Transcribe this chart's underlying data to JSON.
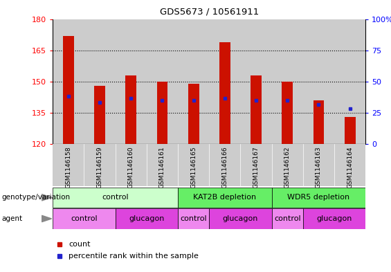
{
  "title": "GDS5673 / 10561911",
  "samples": [
    "GSM1146158",
    "GSM1146159",
    "GSM1146160",
    "GSM1146161",
    "GSM1146165",
    "GSM1146166",
    "GSM1146167",
    "GSM1146162",
    "GSM1146163",
    "GSM1146164"
  ],
  "bar_values": [
    172,
    148,
    153,
    150,
    149,
    169,
    153,
    150,
    141,
    133
  ],
  "bar_bottom": 120,
  "percentile_values": [
    143,
    140,
    142,
    141,
    141,
    142,
    141,
    141,
    139,
    137
  ],
  "ylim_left": [
    120,
    180
  ],
  "yticks_left": [
    120,
    135,
    150,
    165,
    180
  ],
  "ylim_right": [
    0,
    100
  ],
  "yticks_right": [
    0,
    25,
    50,
    75,
    100
  ],
  "bar_color": "#cc1100",
  "percentile_color": "#2222cc",
  "bar_width": 0.35,
  "genotype_groups": [
    {
      "label": "control",
      "start": 0,
      "end": 4,
      "color": "#ccffcc"
    },
    {
      "label": "KAT2B depletion",
      "start": 4,
      "end": 7,
      "color": "#66ee66"
    },
    {
      "label": "WDR5 depletion",
      "start": 7,
      "end": 10,
      "color": "#66ee66"
    }
  ],
  "agent_groups": [
    {
      "label": "control",
      "start": 0,
      "end": 2,
      "color": "#ee88ee"
    },
    {
      "label": "glucagon",
      "start": 2,
      "end": 4,
      "color": "#dd44dd"
    },
    {
      "label": "control",
      "start": 4,
      "end": 5,
      "color": "#ee88ee"
    },
    {
      "label": "glucagon",
      "start": 5,
      "end": 7,
      "color": "#dd44dd"
    },
    {
      "label": "control",
      "start": 7,
      "end": 8,
      "color": "#ee88ee"
    },
    {
      "label": "glucagon",
      "start": 8,
      "end": 10,
      "color": "#dd44dd"
    }
  ],
  "legend_count_color": "#cc1100",
  "legend_percentile_color": "#2222cc",
  "background_color": "#ffffff",
  "plot_bg": "#ffffff",
  "row_label_genotype": "genotype/variation",
  "row_label_agent": "agent",
  "col_bg_color": "#cccccc"
}
